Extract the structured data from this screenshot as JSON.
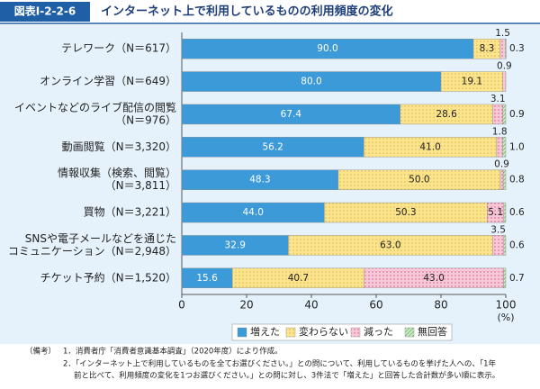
{
  "chart_data": {
    "type": "stacked_barh",
    "figure_label": "図表Ⅰ-2-2-6",
    "title": "インターネット上で利用しているものの利用頻度の変化",
    "categories": [
      [
        "テレワーク（N＝617）"
      ],
      [
        "オンライン学習（N＝649）"
      ],
      [
        "イベントなどのライブ配信の閲覧",
        "（N＝976）"
      ],
      [
        "動画閲覧（N＝3,320）"
      ],
      [
        "情報収集（検索、閲覧）",
        "（N＝3,811）"
      ],
      [
        "買物（N＝3,221）"
      ],
      [
        "SNSや電子メールなどを通じた",
        "コミュニケーション（N＝2,948）"
      ],
      [
        "チケット予約（N＝1,520）"
      ]
    ],
    "series": [
      {
        "name": "増えた",
        "color": "#3d9ad8",
        "values": [
          90.0,
          80.0,
          67.4,
          56.2,
          48.3,
          44.0,
          32.9,
          15.6
        ],
        "value_labels": [
          "90.0",
          "80.0",
          "67.4",
          "56.2",
          "48.3",
          "44.0",
          "32.9",
          "15.6"
        ]
      },
      {
        "name": "変わらない",
        "color": "#fbe48c",
        "values": [
          8.3,
          19.1,
          28.6,
          41.0,
          50.0,
          50.3,
          63.0,
          40.7
        ],
        "value_labels": [
          "8.3",
          "19.1",
          "28.6",
          "41.0",
          "50.0",
          "50.3",
          "63.0",
          "40.7"
        ]
      },
      {
        "name": "減った",
        "color": "#f6c8d8",
        "values": [
          1.5,
          0.9,
          3.1,
          1.8,
          0.9,
          5.1,
          3.5,
          43.0
        ],
        "value_labels": [
          "1.5",
          "0.9",
          "3.1",
          "1.8",
          "0.9",
          "5.1",
          "3.5",
          "43.0"
        ]
      },
      {
        "name": "無回答",
        "color": "#cde8c4",
        "values": [
          0.3,
          0,
          0.9,
          1.0,
          0.8,
          0.6,
          0.6,
          0.7
        ],
        "value_labels": [
          "0.3",
          null,
          "0.9",
          "1.0",
          "0.8",
          "0.6",
          "0.6",
          "0.7"
        ]
      }
    ],
    "xlim": [
      0,
      100
    ],
    "xticks": [
      0,
      20,
      40,
      60,
      80,
      100
    ],
    "x_label": "(%)",
    "notes": {
      "head": "（備考）",
      "lines": [
        "1．消費者庁「消費者意識基本調査」（2020年度）により作成。",
        "2．「インターネット上で利用しているものを全てお選びください。」との問について、利用しているものを挙げた人への、「1年",
        "前と比べて、利用頻度の変化を1つお選びください。」との問に対し、3件法で「増えた」と回答した合計数が多い順に表示。"
      ]
    }
  }
}
